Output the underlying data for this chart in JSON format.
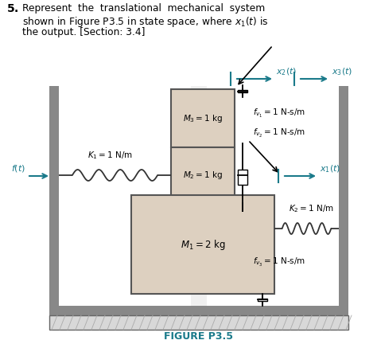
{
  "bg_color": "#ffffff",
  "wall_gray": "#888888",
  "wall_light": "#cccccc",
  "inner_bg": "#f0f0f0",
  "mass_fill": "#ddd0c0",
  "mass_edge": "#555555",
  "floor_fill": "#cccccc",
  "spring_color": "#333333",
  "arrow_color": "#1a7a8a",
  "diag_arrow_color": "#333333",
  "text_color": "#000000",
  "figure_label_color": "#1a7a8a",
  "title_number": "5.",
  "title_l1": "Represent  the  translational  mechanical  system",
  "title_l2": "shown in Figure P3.5 in state space, where $x_1(t)$ is",
  "title_l3": "the output. [Section: 3.4]",
  "figure_label": "FIGURE P3.5"
}
